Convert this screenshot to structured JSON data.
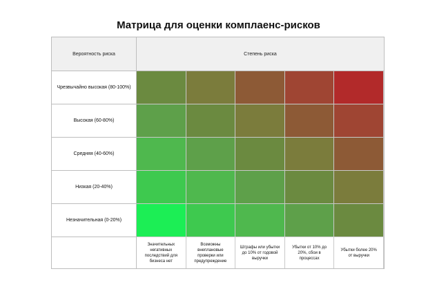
{
  "chart_data": {
    "type": "heatmap",
    "title": "Матрица для оценки комплаенс-рисков",
    "ylabel": "Вероятность риска",
    "xlabel": "Степень риска",
    "rows": [
      "Чрезвычайно высокая (80-100%)",
      "Высокая (60-80%)",
      "Средняя (40-60%)",
      "Низкая (20-40%)",
      "Незначительная (0-20%)"
    ],
    "columns": [
      "Значительных негативных последствий для бизнеса нет",
      "Возможны внеплановые проверки или предупреждение",
      "Штрафы или убытки до 10% от годовой выручки",
      "Убытки от 10% до 20%, сбои в процессах",
      "Убытки более 20% от выручки"
    ],
    "colors": [
      [
        "#6b8a40",
        "#7b7c3c",
        "#8d5a36",
        "#9f4533",
        "#b22a2a"
      ],
      [
        "#5ea04a",
        "#6b8a40",
        "#7b7c3c",
        "#8d5a36",
        "#9f4533"
      ],
      [
        "#4fb84e",
        "#5ea04a",
        "#6b8a40",
        "#7b7c3c",
        "#8d5a36"
      ],
      [
        "#3ec94f",
        "#4fb84e",
        "#5ea04a",
        "#6b8a40",
        "#7b7c3c"
      ],
      [
        "#1cee55",
        "#3ec94f",
        "#4fb84e",
        "#5ea04a",
        "#6b8a40"
      ]
    ],
    "grid": true
  }
}
